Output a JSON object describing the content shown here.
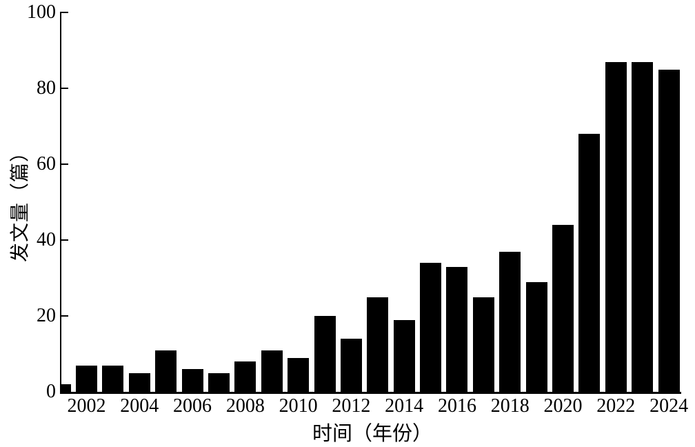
{
  "figure": {
    "background": "#ffffff",
    "axis_color": "#000000",
    "text_color": "#000000"
  },
  "chart_data": {
    "type": "bar",
    "title": "",
    "xlabel": "时间（年份）",
    "ylabel": "发文量（篇）",
    "x": [
      2001,
      2002,
      2003,
      2004,
      2005,
      2006,
      2007,
      2008,
      2009,
      2010,
      2011,
      2012,
      2013,
      2014,
      2015,
      2016,
      2017,
      2018,
      2019,
      2020,
      2021,
      2022,
      2023,
      2024
    ],
    "values": [
      2,
      7,
      7,
      5,
      11,
      6,
      5,
      8,
      11,
      9,
      20,
      14,
      25,
      19,
      34,
      33,
      25,
      37,
      29,
      44,
      68,
      87,
      87,
      85
    ],
    "ylim": [
      0,
      100
    ],
    "yticks": [
      0,
      20,
      40,
      60,
      80,
      100
    ],
    "xtick_years": [
      2002,
      2004,
      2006,
      2008,
      2010,
      2012,
      2014,
      2016,
      2018,
      2020,
      2022,
      2024
    ],
    "bar_color": "#000000",
    "grid": false,
    "legend": "none",
    "notes": "first bar (2001) is half-clipped by the left y-axis"
  }
}
